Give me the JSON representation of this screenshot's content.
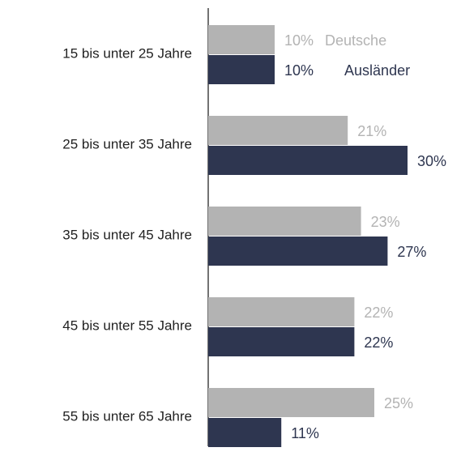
{
  "chart_data": {
    "type": "bar",
    "orientation": "horizontal",
    "categories": [
      "15 bis unter 25 Jahre",
      "25 bis unter 35 Jahre",
      "35 bis unter 45 Jahre",
      "45 bis unter 55 Jahre",
      "55 bis unter 65 Jahre"
    ],
    "series": [
      {
        "name": "Deutsche",
        "color": "#b3b3b3",
        "values": [
          10,
          21,
          23,
          22,
          25
        ],
        "value_labels": [
          "10%",
          "21%",
          "23%",
          "22%",
          "25%"
        ]
      },
      {
        "name": "Ausländer",
        "color": "#2e3650",
        "values": [
          10,
          30,
          27,
          22,
          11
        ],
        "value_labels": [
          "10%",
          "30%",
          "27%",
          "22%",
          "11%"
        ]
      }
    ]
  }
}
